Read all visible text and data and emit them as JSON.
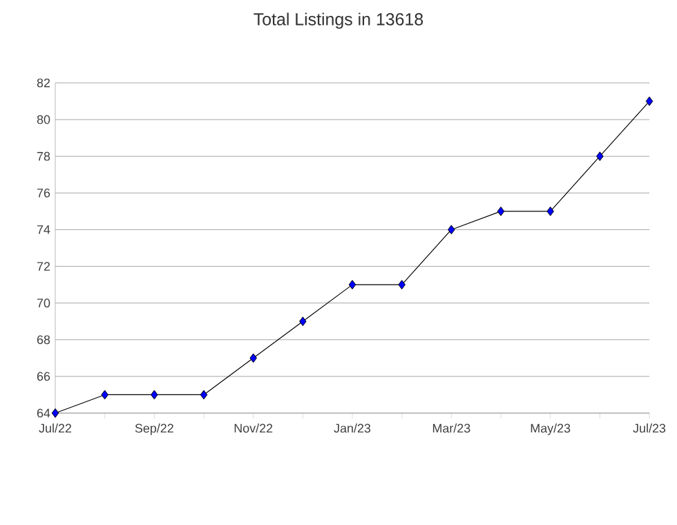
{
  "chart_data": {
    "type": "line",
    "title": "Total Listings in 13618",
    "categories": [
      "Jul/22",
      null,
      "Sep/22",
      null,
      "Nov/22",
      null,
      "Jan/23",
      null,
      "Mar/23",
      null,
      "May/23",
      null,
      "Jul/23"
    ],
    "series": [
      {
        "color": "#0000ff",
        "values": [
          64,
          65,
          65,
          65,
          67,
          69,
          71,
          71,
          74,
          75,
          75,
          78,
          81
        ]
      }
    ],
    "ylim": [
      64,
      82
    ],
    "yticks": [
      64,
      66,
      68,
      70,
      72,
      74,
      76,
      78,
      80,
      82
    ],
    "grid": "y",
    "marker": "diamond",
    "line_style": "solid"
  }
}
